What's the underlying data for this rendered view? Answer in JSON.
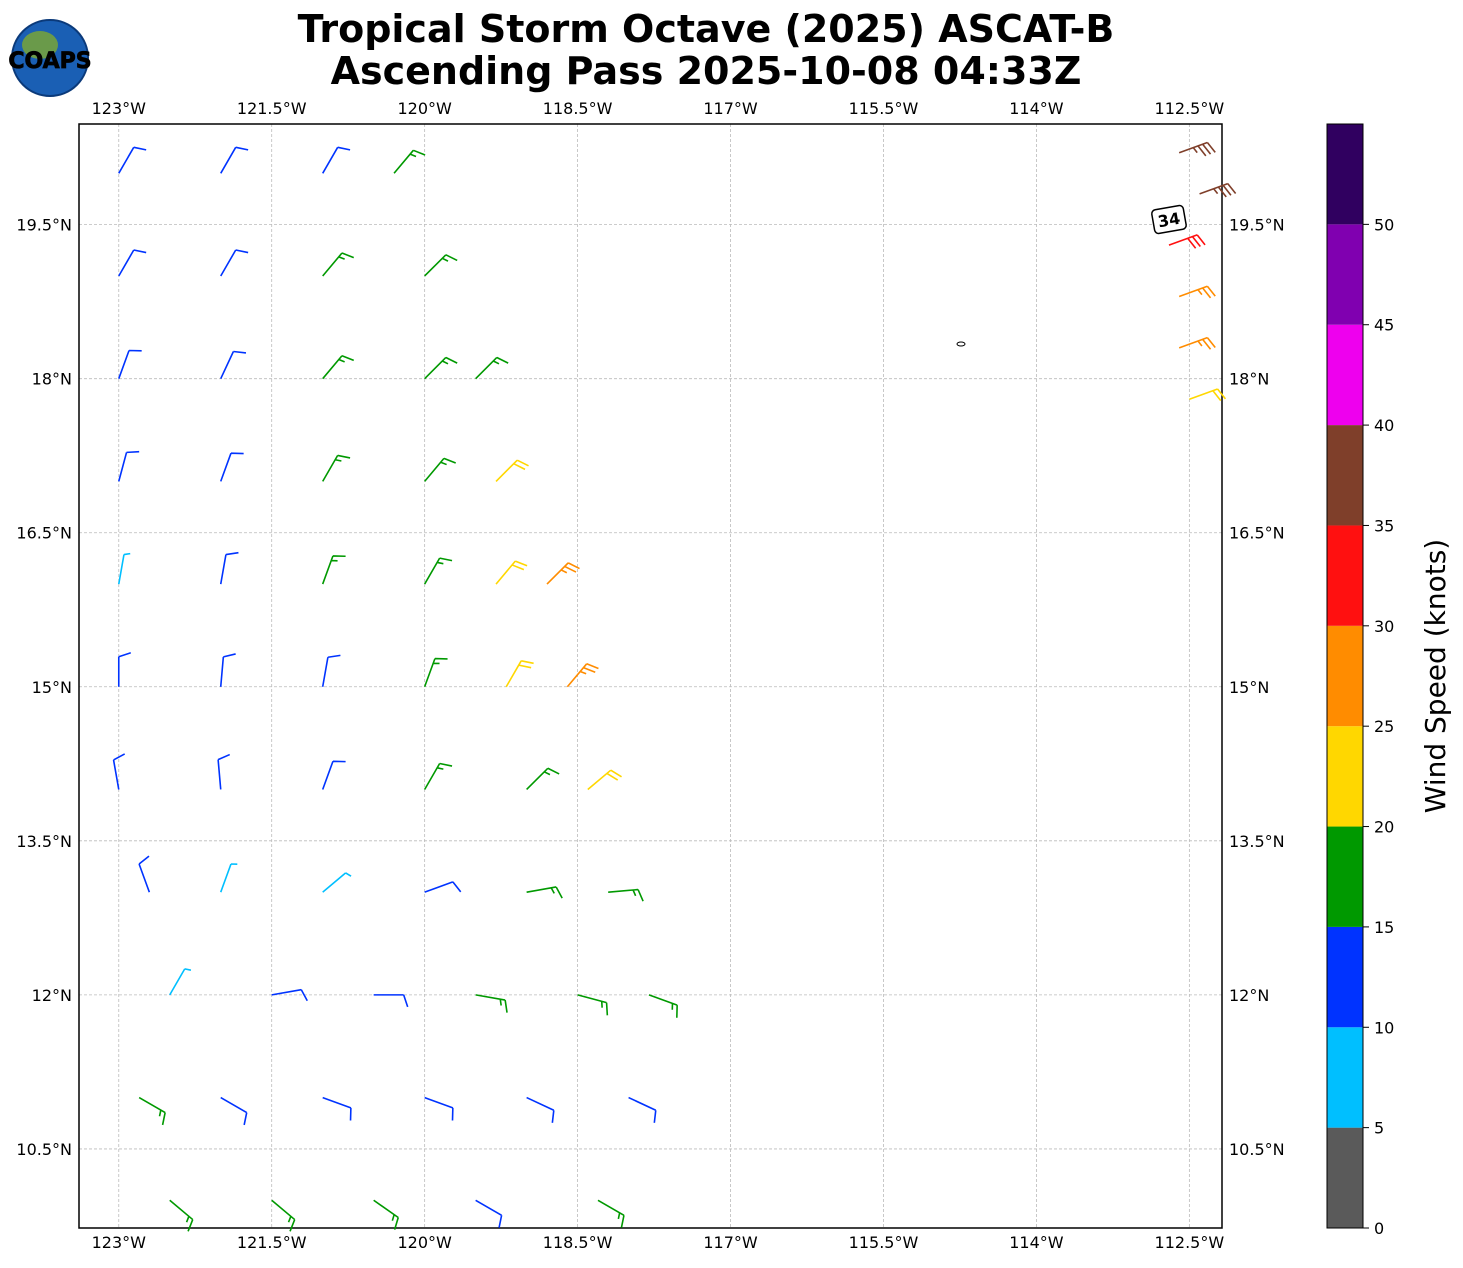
{
  "header": {
    "title_lines": [
      "Tropical Storm Octave (2025) ASCAT-B",
      "Ascending Pass 2025-10-08 04:33Z"
    ],
    "logo": "COAPS"
  },
  "map": {
    "xlim": [
      -123.39,
      -112.18
    ],
    "ylim": [
      9.73,
      20.48
    ],
    "xticks": [
      {
        "value": -123,
        "label": "123°W"
      },
      {
        "value": -121.5,
        "label": "121.5°W"
      },
      {
        "value": -120,
        "label": "120°W"
      },
      {
        "value": -118.5,
        "label": "118.5°W"
      },
      {
        "value": -117,
        "label": "117°W"
      },
      {
        "value": -115.5,
        "label": "115.5°W"
      },
      {
        "value": -114,
        "label": "114°W"
      },
      {
        "value": -112.5,
        "label": "112.5°W"
      }
    ],
    "yticks": [
      {
        "value": 10.5,
        "label": "10.5°N"
      },
      {
        "value": 12,
        "label": "12°N"
      },
      {
        "value": 13.5,
        "label": "13.5°N"
      },
      {
        "value": 15,
        "label": "15°N"
      },
      {
        "value": 16.5,
        "label": "16.5°N"
      },
      {
        "value": 18,
        "label": "18°N"
      },
      {
        "value": 19.5,
        "label": "19.5°N"
      }
    ]
  },
  "colorbar": {
    "label": "Wind Speed (knots)",
    "lim": [
      0,
      55
    ],
    "ticks": [
      0,
      5,
      10,
      15,
      20,
      25,
      30,
      35,
      40,
      45,
      50
    ],
    "colors": [
      "#5a5a5a",
      "#00bfff",
      "#0033ff",
      "#009900",
      "#ffd700",
      "#ff8c00",
      "#ff1010",
      "#7f3f2a",
      "#ee00ee",
      "#8000b0",
      "#300060"
    ]
  },
  "annotation": {
    "label": "34",
    "lon": -112.7,
    "lat": 19.55
  },
  "barbs": {
    "lon": [
      -123,
      -122,
      -121,
      -120.3,
      -123,
      -122,
      -121,
      -120,
      -123,
      -122,
      -121,
      -120,
      -119.5,
      -123,
      -122,
      -121,
      -120,
      -119.3,
      -123,
      -122,
      -121,
      -120,
      -119.3,
      -118.8,
      -123,
      -122,
      -121,
      -120,
      -119.2,
      -118.6,
      -123,
      -122,
      -121,
      -120,
      -119,
      -118.4,
      -122.7,
      -122,
      -121,
      -120,
      -119,
      -118.2,
      -122.5,
      -121.5,
      -120.5,
      -119.5,
      -118.5,
      -117.8,
      -122.8,
      -122,
      -121,
      -120,
      -119,
      -118,
      -122.5,
      -121.5,
      -120.5,
      -119.5,
      -118.3,
      -112.6,
      -112.4,
      -112.7,
      -112.6,
      -112.6,
      -112.5
    ],
    "lat": [
      20,
      20,
      20,
      20,
      19,
      19,
      19,
      19,
      18,
      18,
      18,
      18,
      18,
      17,
      17,
      17,
      17,
      17,
      16,
      16,
      16,
      16,
      16,
      16,
      15,
      15,
      15,
      15,
      15,
      15,
      14,
      14,
      14,
      14,
      14,
      14,
      13,
      13,
      13,
      13,
      13,
      13,
      12,
      12,
      12,
      12,
      12,
      12,
      11,
      11,
      11,
      11,
      11,
      11,
      10,
      10,
      10,
      10,
      10,
      20.2,
      19.8,
      19.3,
      18.8,
      18.3,
      17.8
    ],
    "speed": [
      12,
      12,
      13,
      17,
      12,
      13,
      17,
      18,
      12,
      14,
      17,
      18,
      17,
      12,
      12,
      16,
      17,
      22,
      8,
      11,
      16,
      18,
      23,
      27,
      12,
      13,
      13,
      18,
      23,
      28,
      12,
      12,
      13,
      15,
      18,
      23,
      12,
      8,
      8,
      12,
      15,
      18,
      7,
      12,
      13,
      15,
      17,
      18,
      16,
      14,
      13,
      13,
      14,
      13,
      17,
      17,
      15,
      13,
      15,
      37,
      37,
      33,
      28,
      27,
      22
    ],
    "dir": [
      30,
      30,
      30,
      40,
      30,
      30,
      40,
      45,
      20,
      25,
      40,
      45,
      45,
      15,
      20,
      30,
      40,
      45,
      10,
      10,
      20,
      30,
      40,
      45,
      0,
      5,
      10,
      20,
      30,
      40,
      350,
      355,
      20,
      30,
      45,
      50,
      340,
      20,
      50,
      70,
      80,
      85,
      30,
      80,
      90,
      100,
      105,
      110,
      120,
      120,
      110,
      110,
      115,
      115,
      130,
      130,
      125,
      120,
      120,
      70,
      70,
      70,
      70,
      70,
      70
    ]
  }
}
